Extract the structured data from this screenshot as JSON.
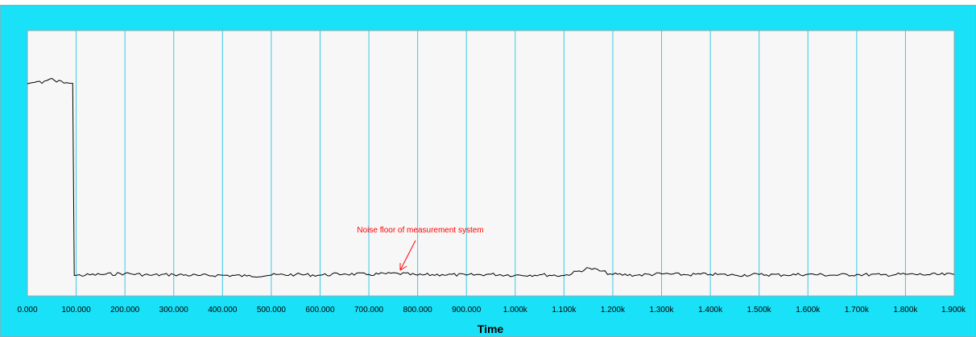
{
  "window": {
    "top_strip_text": "",
    "frame_color": "#19e1f7",
    "plot_bg": "#f7f7f7",
    "grid_color": "#3cc8e6",
    "trace_color": "#000000",
    "annotation_color": "#ff0000"
  },
  "chart_data": {
    "type": "line",
    "title": "",
    "xlabel": "Time",
    "ylabel": "",
    "xlim": [
      0,
      1900000
    ],
    "ylim": [
      0,
      1
    ],
    "grid": "vertical",
    "x_tick_values": [
      0,
      100000,
      200000,
      300000,
      400000,
      500000,
      600000,
      700000,
      800000,
      900000,
      1000000,
      1100000,
      1200000,
      1300000,
      1400000,
      1500000,
      1600000,
      1700000,
      1800000,
      1900000
    ],
    "x_tick_labels": [
      "0.000",
      "100.000",
      "200.000",
      "300.000",
      "400.000",
      "500.000",
      "600.000",
      "700.000",
      "800.000",
      "900.000",
      "1.000k",
      "1.100k",
      "1.200k",
      "1.300k",
      "1.400k",
      "1.500k",
      "1.600k",
      "1.700k",
      "1.800k",
      "1.900k"
    ],
    "series": [
      {
        "points": [
          [
            0,
            0.91
          ],
          [
            10000,
            0.915
          ],
          [
            20000,
            0.92
          ],
          [
            30000,
            0.912
          ],
          [
            40000,
            0.925
          ],
          [
            50000,
            0.935
          ],
          [
            60000,
            0.918
          ],
          [
            70000,
            0.922
          ],
          [
            80000,
            0.915
          ],
          [
            93000,
            0.912
          ],
          [
            96000,
            0.02
          ],
          [
            150000,
            0.025
          ],
          [
            200000,
            0.03
          ],
          [
            250000,
            0.022
          ],
          [
            300000,
            0.025
          ],
          [
            350000,
            0.02
          ],
          [
            400000,
            0.022
          ],
          [
            450000,
            0.018
          ],
          [
            500000,
            0.022
          ],
          [
            550000,
            0.025
          ],
          [
            600000,
            0.022
          ],
          [
            650000,
            0.028
          ],
          [
            700000,
            0.025
          ],
          [
            760000,
            0.03
          ],
          [
            800000,
            0.022
          ],
          [
            850000,
            0.025
          ],
          [
            900000,
            0.022
          ],
          [
            950000,
            0.026
          ],
          [
            1000000,
            0.022
          ],
          [
            1050000,
            0.024
          ],
          [
            1100000,
            0.02
          ],
          [
            1152000,
            0.055
          ],
          [
            1200000,
            0.025
          ],
          [
            1250000,
            0.022
          ],
          [
            1300000,
            0.028
          ],
          [
            1350000,
            0.024
          ],
          [
            1400000,
            0.026
          ],
          [
            1450000,
            0.022
          ],
          [
            1500000,
            0.025
          ],
          [
            1550000,
            0.023
          ],
          [
            1600000,
            0.026
          ],
          [
            1650000,
            0.022
          ],
          [
            1700000,
            0.025
          ],
          [
            1750000,
            0.023
          ],
          [
            1800000,
            0.026
          ],
          [
            1850000,
            0.024
          ],
          [
            1900000,
            0.025
          ]
        ]
      }
    ],
    "annotations": [
      {
        "text": "Noise floor of measurement system",
        "x": 760000,
        "y": 0.03
      }
    ]
  }
}
